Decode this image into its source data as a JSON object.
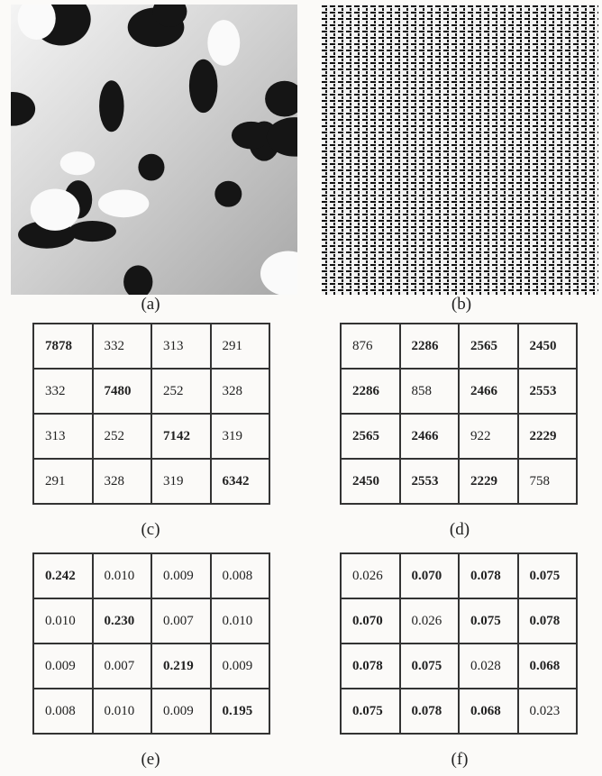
{
  "figures": [
    {
      "caption": "(a)"
    },
    {
      "caption": "(b)"
    }
  ],
  "tables": [
    {
      "caption": "(c)",
      "rows": [
        [
          "7878",
          "332",
          "313",
          "291"
        ],
        [
          "332",
          "7480",
          "252",
          "328"
        ],
        [
          "313",
          "252",
          "7142",
          "319"
        ],
        [
          "291",
          "328",
          "319",
          "6342"
        ]
      ]
    },
    {
      "caption": "(d)",
      "rows": [
        [
          "876",
          "2286",
          "2565",
          "2450"
        ],
        [
          "2286",
          "858",
          "2466",
          "2553"
        ],
        [
          "2565",
          "2466",
          "922",
          "2229"
        ],
        [
          "2450",
          "2553",
          "2229",
          "758"
        ]
      ]
    },
    {
      "caption": "(e)",
      "rows": [
        [
          "0.242",
          "0.010",
          "0.009",
          "0.008"
        ],
        [
          "0.010",
          "0.230",
          "0.007",
          "0.010"
        ],
        [
          "0.009",
          "0.007",
          "0.219",
          "0.009"
        ],
        [
          "0.008",
          "0.010",
          "0.009",
          "0.195"
        ]
      ]
    },
    {
      "caption": "(f)",
      "rows": [
        [
          "0.026",
          "0.070",
          "0.078",
          "0.075"
        ],
        [
          "0.070",
          "0.026",
          "0.075",
          "0.078"
        ],
        [
          "0.078",
          "0.075",
          "0.028",
          "0.068"
        ],
        [
          "0.075",
          "0.078",
          "0.068",
          "0.023"
        ]
      ]
    }
  ]
}
